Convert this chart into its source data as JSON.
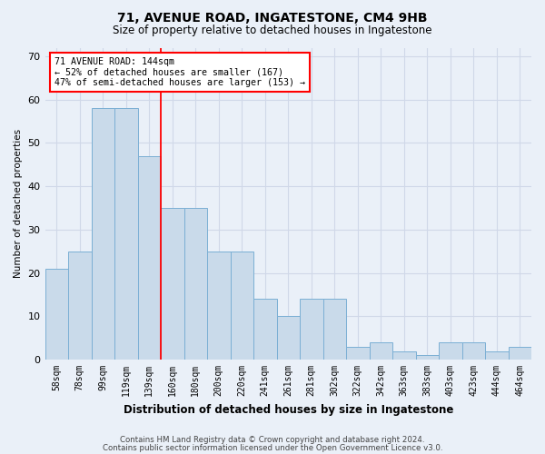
{
  "title1": "71, AVENUE ROAD, INGATESTONE, CM4 9HB",
  "title2": "Size of property relative to detached houses in Ingatestone",
  "xlabel": "Distribution of detached houses by size in Ingatestone",
  "ylabel": "Number of detached properties",
  "categories": [
    "58sqm",
    "78sqm",
    "99sqm",
    "119sqm",
    "139sqm",
    "160sqm",
    "180sqm",
    "200sqm",
    "220sqm",
    "241sqm",
    "261sqm",
    "281sqm",
    "302sqm",
    "322sqm",
    "342sqm",
    "363sqm",
    "383sqm",
    "403sqm",
    "423sqm",
    "444sqm",
    "464sqm"
  ],
  "bar_values": [
    21,
    25,
    58,
    58,
    47,
    35,
    35,
    25,
    25,
    14,
    10,
    14,
    14,
    3,
    4,
    2,
    1,
    4,
    4,
    2,
    3
  ],
  "bar_color": "#c9daea",
  "bar_edge_color": "#7bafd4",
  "red_line_x": 4.5,
  "annotation_text": "71 AVENUE ROAD: 144sqm\n← 52% of detached houses are smaller (167)\n47% of semi-detached houses are larger (153) →",
  "annotation_box_color": "white",
  "annotation_box_edge_color": "red",
  "ylim": [
    0,
    72
  ],
  "yticks": [
    0,
    10,
    20,
    30,
    40,
    50,
    60,
    70
  ],
  "grid_color": "#d0d8e8",
  "footer1": "Contains HM Land Registry data © Crown copyright and database right 2024.",
  "footer2": "Contains public sector information licensed under the Open Government Licence v3.0.",
  "bg_color": "#eaf0f8"
}
